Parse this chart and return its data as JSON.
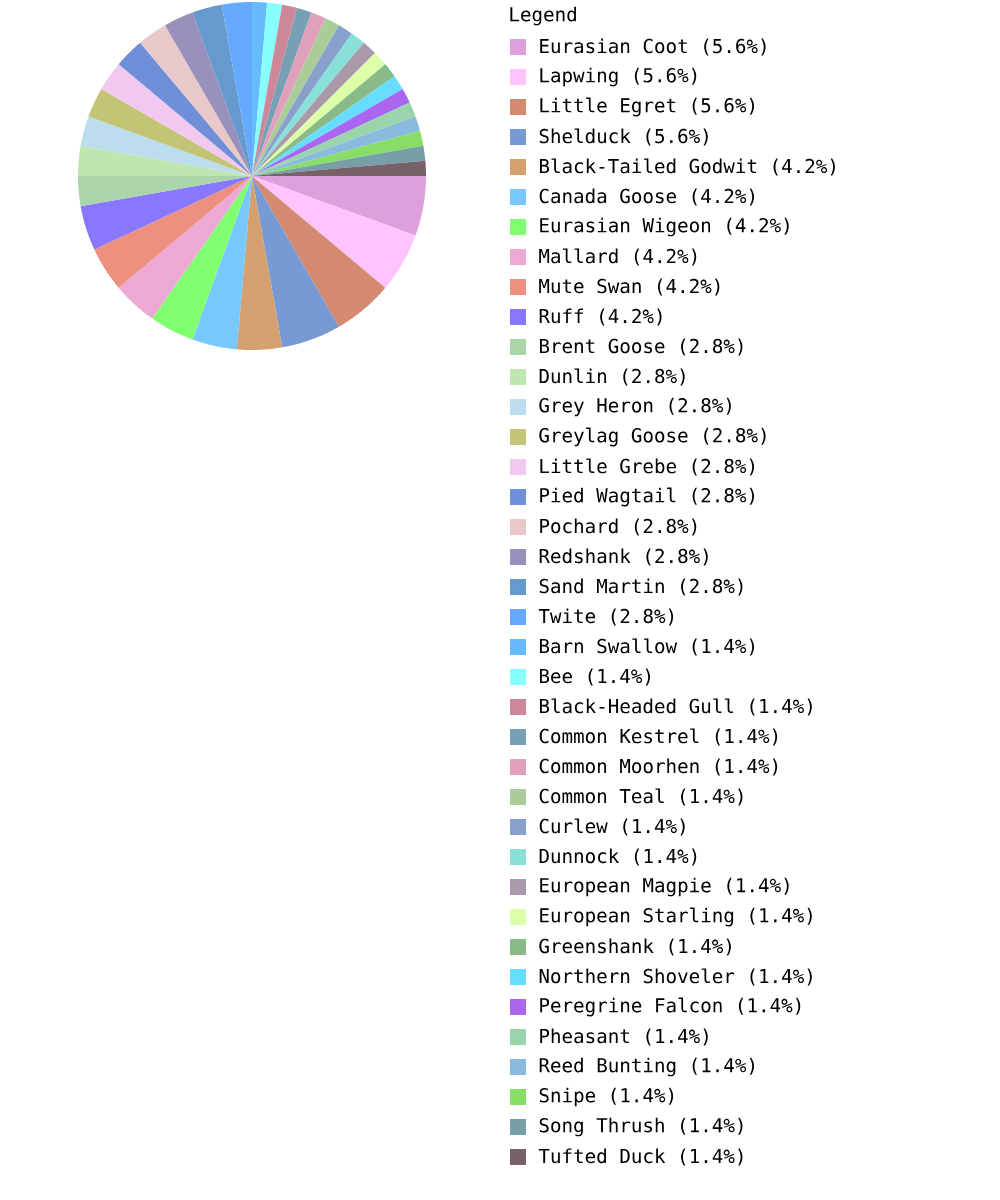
{
  "chart_data": {
    "type": "pie",
    "legend_title": "Legend",
    "legend": "right",
    "categories": [
      "Eurasian Coot",
      "Lapwing",
      "Little Egret",
      "Shelduck",
      "Black-Tailed Godwit",
      "Canada Goose",
      "Eurasian Wigeon",
      "Mallard",
      "Mute Swan",
      "Ruff",
      "Brent Goose",
      "Dunlin",
      "Grey Heron",
      "Greylag Goose",
      "Little Grebe",
      "Pied Wagtail",
      "Pochard",
      "Redshank",
      "Sand Martin",
      "Twite",
      "Barn Swallow",
      "Bee",
      "Black-Headed Gull",
      "Common Kestrel",
      "Common Moorhen",
      "Common Teal",
      "Curlew",
      "Dunnock",
      "European Magpie",
      "European Starling",
      "Greenshank",
      "Northern Shoveler",
      "Peregrine Falcon",
      "Pheasant",
      "Reed Bunting",
      "Snipe",
      "Song Thrush",
      "Tufted Duck"
    ],
    "values": [
      5.6,
      5.6,
      5.6,
      5.6,
      4.2,
      4.2,
      4.2,
      4.2,
      4.2,
      4.2,
      2.8,
      2.8,
      2.8,
      2.8,
      2.8,
      2.8,
      2.8,
      2.8,
      2.8,
      2.8,
      1.4,
      1.4,
      1.4,
      1.4,
      1.4,
      1.4,
      1.4,
      1.4,
      1.4,
      1.4,
      1.4,
      1.4,
      1.4,
      1.4,
      1.4,
      1.4,
      1.4,
      1.4
    ],
    "value_labels": [
      "(5.6%)",
      "(5.6%)",
      "(5.6%)",
      "(5.6%)",
      "(4.2%)",
      "(4.2%)",
      "(4.2%)",
      "(4.2%)",
      "(4.2%)",
      "(4.2%)",
      "(2.8%)",
      "(2.8%)",
      "(2.8%)",
      "(2.8%)",
      "(2.8%)",
      "(2.8%)",
      "(2.8%)",
      "(2.8%)",
      "(2.8%)",
      "(2.8%)",
      "(1.4%)",
      "(1.4%)",
      "(1.4%)",
      "(1.4%)",
      "(1.4%)",
      "(1.4%)",
      "(1.4%)",
      "(1.4%)",
      "(1.4%)",
      "(1.4%)",
      "(1.4%)",
      "(1.4%)",
      "(1.4%)",
      "(1.4%)",
      "(1.4%)",
      "(1.4%)",
      "(1.4%)",
      "(1.4%)"
    ],
    "colors": [
      "#dda0dd",
      "#ffc4ff",
      "#d48a70",
      "#7799d4",
      "#d4a070",
      "#77c8ff",
      "#80ff70",
      "#eea8d4",
      "#ee9080",
      "#8877ff",
      "#aad4aa",
      "#bfe6b0",
      "#bbddee",
      "#c4c477",
      "#f0c8f0",
      "#6f90d8",
      "#e8c8c8",
      "#9990bb",
      "#6699cc",
      "#66aaff",
      "#66bbff",
      "#88ffff",
      "#cc8899",
      "#77a0b4",
      "#e0a0bb",
      "#aacc99",
      "#88a0cc",
      "#88e0d8",
      "#aa99aa",
      "#ddffaa",
      "#88bb88",
      "#66ddff",
      "#aa66ee",
      "#99d4aa",
      "#88bbdd",
      "#88dd66",
      "#779fa8",
      "#776068"
    ]
  }
}
